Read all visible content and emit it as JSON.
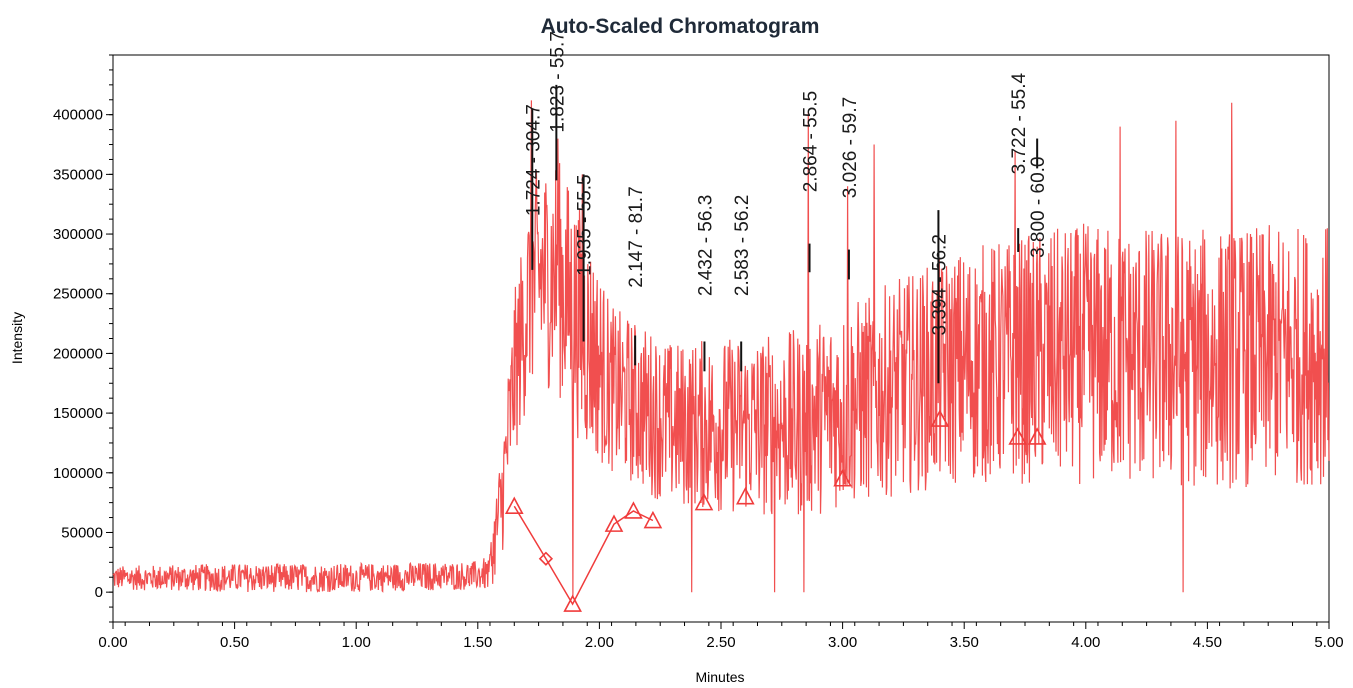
{
  "chart_data": {
    "type": "line",
    "title": "Auto-Scaled Chromatogram",
    "xlabel": "Minutes",
    "ylabel": "Intensity",
    "xlim": [
      0,
      5
    ],
    "ylim": [
      -25000,
      450000
    ],
    "x_ticks": [
      "0.00",
      "0.50",
      "1.00",
      "1.50",
      "2.00",
      "2.50",
      "3.00",
      "3.50",
      "4.00",
      "4.50",
      "5.00"
    ],
    "y_ticks": [
      "0",
      "50000",
      "100000",
      "150000",
      "200000",
      "250000",
      "300000",
      "350000",
      "400000"
    ],
    "grid": false,
    "legend": "none",
    "colors": {
      "trace": "#f03c3c",
      "peak_marker": "#f03c3c",
      "peak_tick": "#111111"
    },
    "envelope": [
      {
        "x": 0.0,
        "base": 12000,
        "noise": 10000
      },
      {
        "x": 0.5,
        "base": 12000,
        "noise": 12000
      },
      {
        "x": 1.0,
        "base": 12000,
        "noise": 12000
      },
      {
        "x": 1.5,
        "base": 14000,
        "noise": 12000
      },
      {
        "x": 1.55,
        "base": 20000,
        "noise": 20000
      },
      {
        "x": 1.6,
        "base": 80000,
        "noise": 50000
      },
      {
        "x": 1.65,
        "base": 180000,
        "noise": 70000
      },
      {
        "x": 1.72,
        "base": 260000,
        "noise": 90000
      },
      {
        "x": 1.82,
        "base": 270000,
        "noise": 100000
      },
      {
        "x": 1.93,
        "base": 220000,
        "noise": 100000
      },
      {
        "x": 2.05,
        "base": 170000,
        "noise": 70000
      },
      {
        "x": 2.3,
        "base": 140000,
        "noise": 70000
      },
      {
        "x": 2.8,
        "base": 140000,
        "noise": 80000
      },
      {
        "x": 3.2,
        "base": 170000,
        "noise": 90000
      },
      {
        "x": 3.5,
        "base": 190000,
        "noise": 100000
      },
      {
        "x": 4.0,
        "base": 200000,
        "noise": 110000
      },
      {
        "x": 4.5,
        "base": 195000,
        "noise": 110000
      },
      {
        "x": 5.0,
        "base": 200000,
        "noise": 110000
      }
    ],
    "spikes": [
      {
        "x": 1.72,
        "y": 412000
      },
      {
        "x": 1.83,
        "y": 380000
      },
      {
        "x": 1.93,
        "y": 350000
      },
      {
        "x": 2.86,
        "y": 402000
      },
      {
        "x": 3.02,
        "y": 340000
      },
      {
        "x": 3.13,
        "y": 375000
      },
      {
        "x": 3.71,
        "y": 370000
      },
      {
        "x": 4.14,
        "y": 390000
      },
      {
        "x": 4.37,
        "y": 395000
      },
      {
        "x": 4.6,
        "y": 410000
      }
    ],
    "dips": [
      {
        "x": 1.89,
        "y": -5000
      },
      {
        "x": 2.38,
        "y": 0
      },
      {
        "x": 2.72,
        "y": 0
      },
      {
        "x": 2.84,
        "y": 0
      },
      {
        "x": 4.4,
        "y": 0
      }
    ],
    "peaks": [
      {
        "label": "1.724 - 304.7",
        "rt": 1.724,
        "tick_bottom": 270000,
        "tick_top": 405000,
        "label_y": 315000
      },
      {
        "label": "1.823 - 55.7",
        "rt": 1.823,
        "tick_bottom": 345000,
        "tick_top": 425000,
        "label_y": 385000
      },
      {
        "label": "1.935 - 55.5",
        "rt": 1.935,
        "tick_bottom": 210000,
        "tick_top": 350000,
        "label_y": 265000
      },
      {
        "label": "2.147 - 81.7",
        "rt": 2.147,
        "tick_bottom": 190000,
        "tick_top": 215000,
        "label_y": 255000
      },
      {
        "label": "2.432 - 56.3",
        "rt": 2.432,
        "tick_bottom": 185000,
        "tick_top": 210000,
        "label_y": 248000
      },
      {
        "label": "2.583 - 56.2",
        "rt": 2.583,
        "tick_bottom": 185000,
        "tick_top": 210000,
        "label_y": 248000
      },
      {
        "label": "2.864 - 55.5",
        "rt": 2.864,
        "tick_bottom": 268000,
        "tick_top": 292000,
        "label_y": 335000
      },
      {
        "label": "3.026 - 59.7",
        "rt": 3.026,
        "tick_bottom": 262000,
        "tick_top": 287000,
        "label_y": 330000
      },
      {
        "label": "3.394 - 56.2",
        "rt": 3.394,
        "tick_bottom": 175000,
        "tick_top": 320000,
        "label_y": 215000
      },
      {
        "label": "3.722 - 55.4",
        "rt": 3.722,
        "tick_bottom": 285000,
        "tick_top": 305000,
        "label_y": 350000
      },
      {
        "label": "3.800 - 60.0",
        "rt": 3.8,
        "tick_bottom": 355000,
        "tick_top": 380000,
        "label_y": 280000
      }
    ],
    "baseline_markers": [
      {
        "x": 1.65,
        "y": 72000
      },
      {
        "x": 1.78,
        "y": 28000
      },
      {
        "x": 1.89,
        "y": -10000
      },
      {
        "x": 2.06,
        "y": 57000
      },
      {
        "x": 2.14,
        "y": 68000
      },
      {
        "x": 2.22,
        "y": 60000
      },
      {
        "x": 2.43,
        "y": 75000
      },
      {
        "x": 2.6,
        "y": 80000
      },
      {
        "x": 3.0,
        "y": 95000
      },
      {
        "x": 3.4,
        "y": 145000
      },
      {
        "x": 3.72,
        "y": 130000
      },
      {
        "x": 3.8,
        "y": 130000
      }
    ]
  }
}
